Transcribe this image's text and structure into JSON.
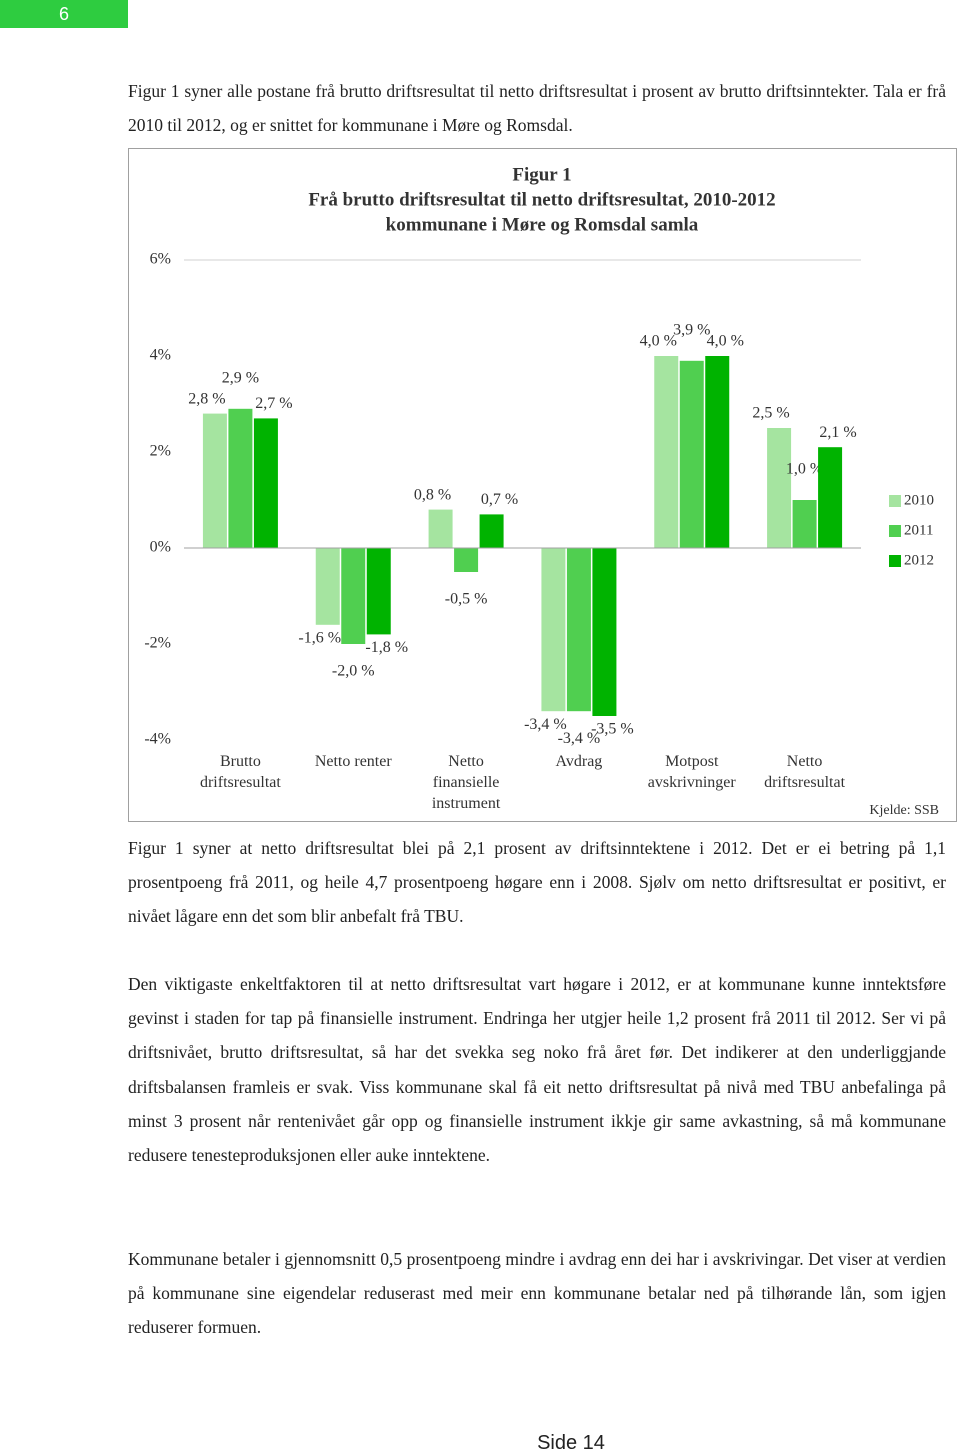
{
  "page_number": "6",
  "intro": "Figur 1 syner alle postane frå brutto driftsresultat til netto driftsresultat i prosent av brutto driftsinntekter. Tala er frå 2010 til 2012, og er snittet for kommunane i Møre og Romsdal.",
  "chart_data": {
    "type": "bar",
    "title": "Figur 1",
    "subtitle": [
      "Frå brutto driftsresultat til netto driftsresultat, 2010-2012",
      "kommunane i Møre og Romsdal samla"
    ],
    "categories": [
      "Brutto driftsresultat",
      "Netto renter",
      "Netto finansielle instrument",
      "Avdrag",
      "Motpost avskrivninger",
      "Netto driftsresultat"
    ],
    "series": [
      {
        "name": "2010",
        "color": "#a5e4a0",
        "values": [
          2.8,
          -1.6,
          0.8,
          -3.4,
          4.0,
          2.5
        ],
        "value_labels": [
          "2,8 %",
          "-1,6 %",
          "0,8 %",
          "-3,4 %",
          "4,0 %",
          "2,5 %"
        ]
      },
      {
        "name": "2011",
        "color": "#50cf50",
        "values": [
          2.9,
          -2.0,
          -0.5,
          -3.4,
          3.9,
          1.0
        ],
        "value_labels": [
          "2,9 %",
          "-2,0 %",
          "-0,5 %",
          "-3,4 %",
          "3,9 %",
          "1,0 %"
        ]
      },
      {
        "name": "2012",
        "color": "#00b300",
        "values": [
          2.7,
          -1.8,
          0.7,
          -3.5,
          4.0,
          2.1
        ],
        "value_labels": [
          "2,7 %",
          "-1,8 %",
          "0,7 %",
          "-3,5 %",
          "4,0 %",
          "2,1 %"
        ]
      }
    ],
    "ylim": [
      -4,
      6
    ],
    "yticks": [
      {
        "value": -4,
        "label": "-4%"
      },
      {
        "value": -2,
        "label": "-2%"
      },
      {
        "value": 0,
        "label": "0%"
      },
      {
        "value": 2,
        "label": "2%"
      },
      {
        "value": 4,
        "label": "4%"
      },
      {
        "value": 6,
        "label": "6%"
      }
    ],
    "grid": false,
    "legend": "right",
    "source": "Kjelde: SSB"
  },
  "paragraphs": [
    "Figur 1 syner at netto driftsresultat blei på 2,1 prosent av driftsinntektene i 2012. Det er ei betring på 1,1 prosentpoeng frå 2011, og heile 4,7 prosentpoeng høgare enn i 2008. Sjølv om netto driftsresultat er positivt, er nivået lågare enn det som blir anbefalt frå TBU.",
    "Den viktigaste enkeltfaktoren til at netto driftsresultat vart høgare i 2012, er at kommunane kunne inntektsføre gevinst i staden for tap på finansielle instrument. Endringa her utgjer heile 1,2 prosent frå 2011 til 2012. Ser vi på driftsnivået, brutto driftsresultat, så har det svekka seg noko frå året før. Det indikerer at den underliggjande driftsbalansen framleis er svak. Viss kommunane skal få eit netto driftsresultat på nivå med TBU anbefalinga på minst 3 prosent når rentenivået går opp og finansielle instrument ikkje gir same avkastning, så må kommunane redusere tenesteproduksjonen eller auke inntektene.",
    "Kommunane betaler i gjennomsnitt 0,5 prosentpoeng mindre i avdrag enn dei har i avskrivingar. Det viser at verdien på kommunane sine eigendelar reduserast med meir enn kommunane betalar ned på tilhørande lån, som igjen reduserer formuen."
  ],
  "footer": "Side 14"
}
